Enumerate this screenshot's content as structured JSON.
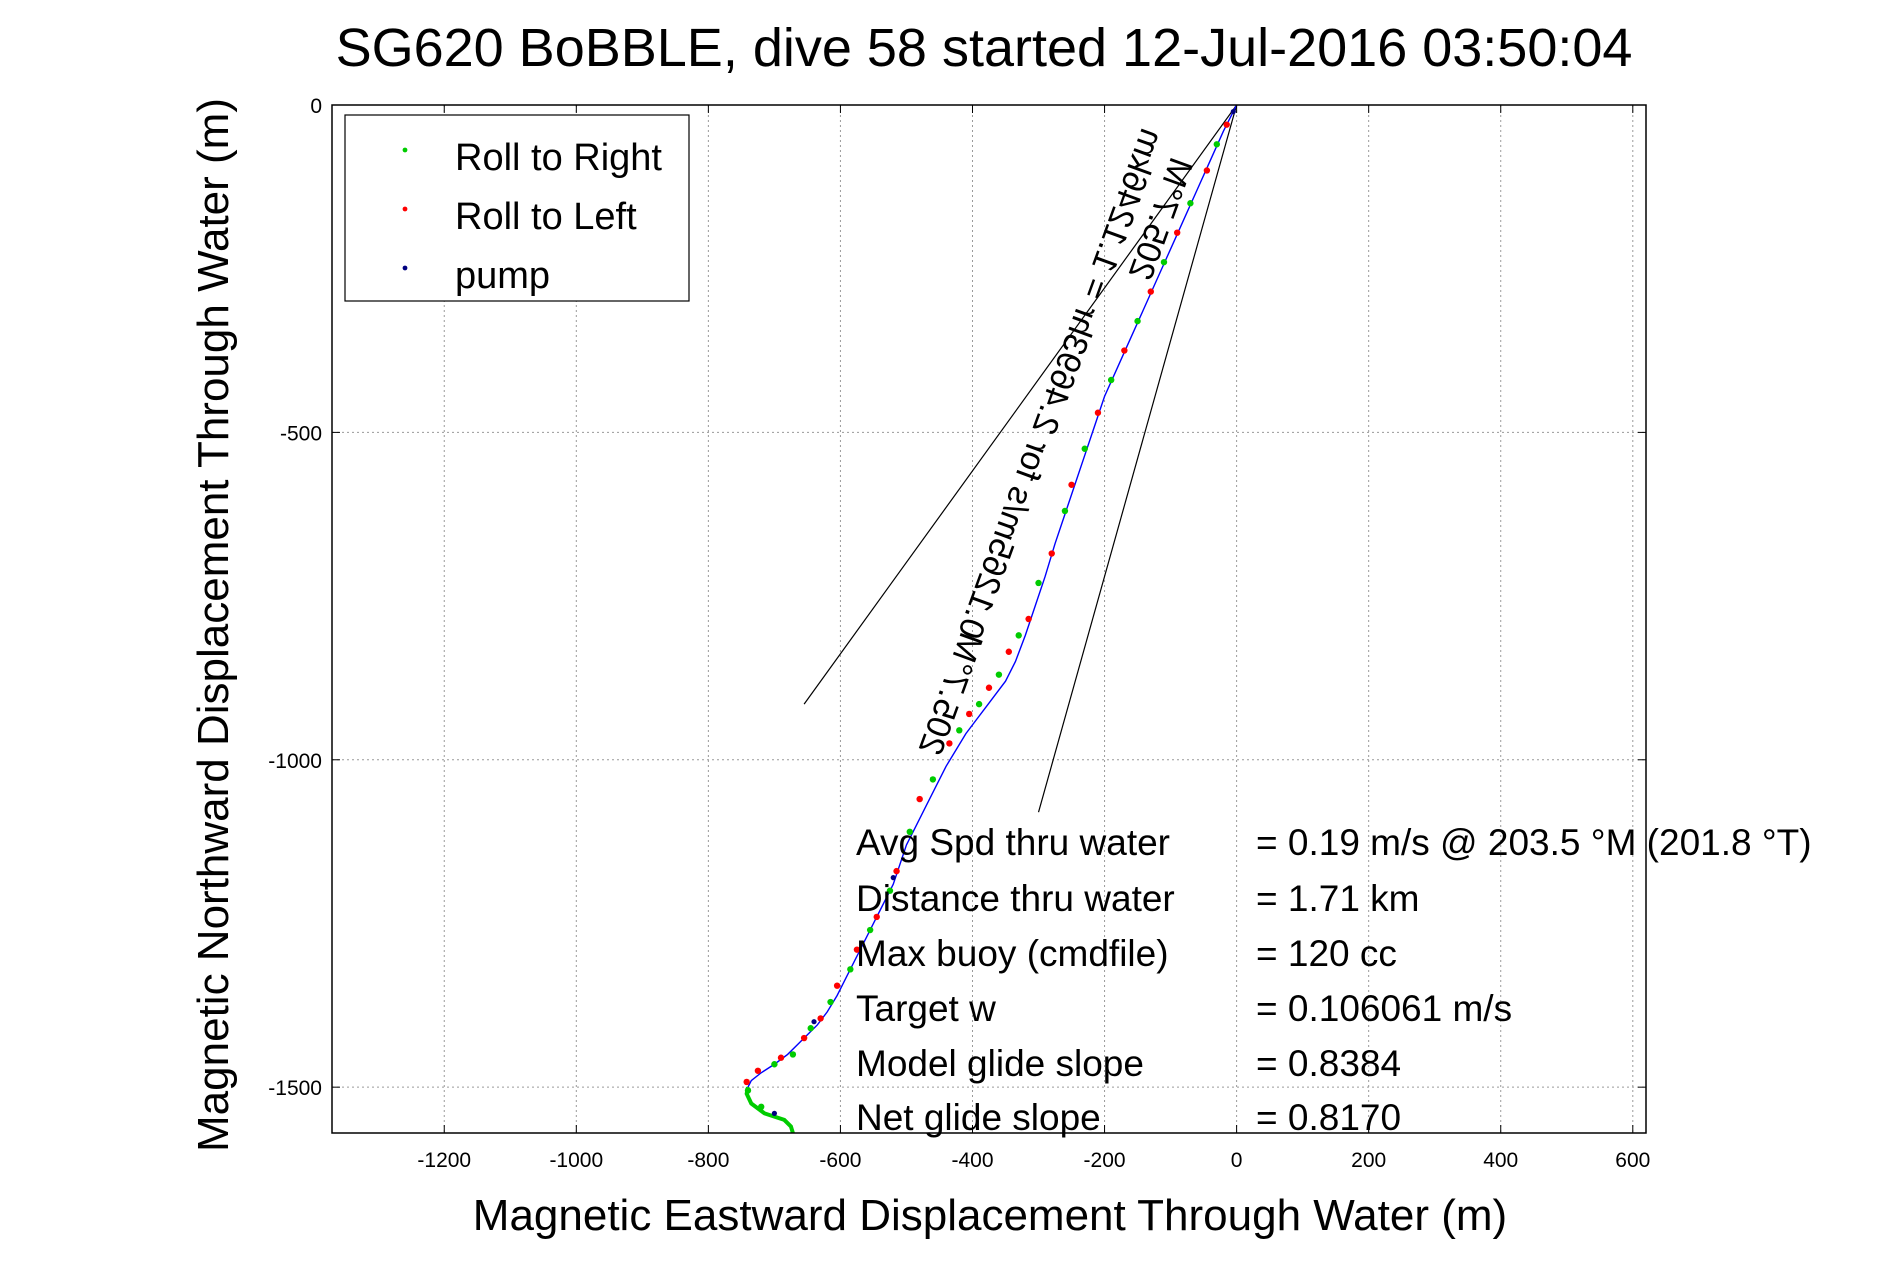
{
  "chart_data": {
    "type": "line",
    "title": "SG620 BoBBLE, dive 58 started 12-Jul-2016 03:50:04",
    "xlabel": "Magnetic Eastward Displacement Through Water (m)",
    "ylabel": "Magnetic Northward Displacement Through Water (m)",
    "xlim": [
      -1370,
      620
    ],
    "ylim": [
      -1570,
      0
    ],
    "xticks": [
      -1200,
      -1000,
      -800,
      -600,
      -400,
      -200,
      0,
      200,
      400,
      600
    ],
    "xtick_labels": [
      "-1200",
      "-1000",
      "-800",
      "-600",
      "-400",
      "-200",
      "0",
      "200",
      "400",
      "600"
    ],
    "yticks": [
      0,
      -500,
      -1000,
      -1500
    ],
    "ytick_labels": [
      "0",
      "-500",
      "-1000",
      "-1500"
    ],
    "grid": true,
    "legend_position": "top-left",
    "legend": [
      {
        "label": "Roll to Right",
        "color": "#00cc00"
      },
      {
        "label": "Roll to Left",
        "color": "#ff0000"
      },
      {
        "label": "pump",
        "color": "#000080"
      }
    ],
    "track": {
      "color": "#0000ff",
      "x": [
        0,
        -20,
        -40,
        -60,
        -80,
        -100,
        -120,
        -140,
        -160,
        -180,
        -200,
        -215,
        -230,
        -245,
        -260,
        -275,
        -290,
        -305,
        -320,
        -335,
        -350,
        -365,
        -380,
        -395,
        -410,
        -425,
        -440,
        -455,
        -470,
        -485,
        -500,
        -510,
        -520,
        -530,
        -540,
        -550,
        -560,
        -575,
        -590,
        -605,
        -620,
        -635,
        -650,
        -665,
        -680,
        -700,
        -720,
        -735,
        -740,
        -742,
        -735,
        -715,
        -700,
        -685,
        -675,
        -672
      ],
      "y": [
        0,
        -40,
        -85,
        -130,
        -175,
        -220,
        -265,
        -310,
        -355,
        -400,
        -445,
        -490,
        -535,
        -580,
        -625,
        -670,
        -720,
        -765,
        -810,
        -850,
        -880,
        -900,
        -920,
        -940,
        -960,
        -985,
        -1010,
        -1040,
        -1070,
        -1100,
        -1130,
        -1160,
        -1190,
        -1210,
        -1230,
        -1250,
        -1270,
        -1300,
        -1330,
        -1360,
        -1385,
        -1405,
        -1420,
        -1435,
        -1450,
        -1465,
        -1478,
        -1490,
        -1500,
        -1510,
        -1525,
        -1540,
        -1545,
        -1550,
        -1560,
        -1570
      ]
    },
    "roll_right": {
      "color": "#00cc00",
      "x": [
        -30,
        -70,
        -110,
        -150,
        -190,
        -230,
        -260,
        -300,
        -330,
        -360,
        -390,
        -420,
        -460,
        -495,
        -525,
        -555,
        -585,
        -615,
        -645,
        -672,
        -700,
        -720,
        -740
      ],
      "y": [
        -60,
        -150,
        -240,
        -330,
        -420,
        -525,
        -620,
        -730,
        -810,
        -870,
        -915,
        -955,
        -1030,
        -1110,
        -1200,
        -1260,
        -1320,
        -1370,
        -1410,
        -1450,
        -1465,
        -1530,
        -1505
      ]
    },
    "roll_left": {
      "color": "#ff0000",
      "x": [
        -15,
        -45,
        -90,
        -130,
        -170,
        -210,
        -250,
        -280,
        -315,
        -345,
        -375,
        -405,
        -435,
        -480,
        -515,
        -545,
        -575,
        -605,
        -630,
        -655,
        -690,
        -725,
        -742
      ],
      "y": [
        -30,
        -100,
        -195,
        -285,
        -375,
        -470,
        -580,
        -685,
        -785,
        -835,
        -890,
        -930,
        -975,
        -1060,
        -1170,
        -1240,
        -1290,
        -1345,
        -1395,
        -1425,
        -1455,
        -1475,
        -1492
      ]
    },
    "pump": {
      "color": "#000080",
      "x": [
        -5,
        -520,
        -640,
        -700
      ],
      "y": [
        -10,
        -1180,
        -1400,
        -1540
      ]
    },
    "current_lines": [
      {
        "x": [
          0,
          -655
        ],
        "y": [
          0,
          -915
        ]
      },
      {
        "x": [
          0,
          -300
        ],
        "y": [
          0,
          -1080
        ]
      }
    ],
    "annotations": [
      {
        "text": "0.1265m/s for 2.4693hr = 1.1246km",
        "rotation": 110
      },
      {
        "text": "205.7°M",
        "rotation": 110
      },
      {
        "text": "205.7°M",
        "rotation": 110
      }
    ],
    "stats": [
      {
        "label": "Avg Spd thru water",
        "value": "=  0.19 m/s @ 203.5 °M (201.8 °T)"
      },
      {
        "label": "Distance thru water",
        "value": "=  1.71 km"
      },
      {
        "label": "Max buoy (cmdfile)",
        "value": "= 120 cc"
      },
      {
        "label": "Target w",
        "value": "= 0.106061 m/s"
      },
      {
        "label": "Model glide slope",
        "value": "= 0.8384"
      },
      {
        "label": "Net glide slope",
        "value": "= 0.8170"
      }
    ]
  }
}
